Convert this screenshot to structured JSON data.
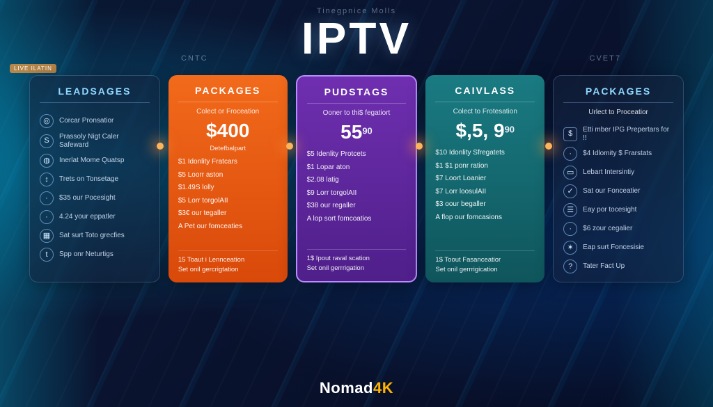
{
  "header": {
    "caption": "Tinegpnice Molls",
    "title": "IPTV",
    "label_left": "CNTC",
    "label_right": "CVET7"
  },
  "live_tag": "LIVE ILATIN",
  "brand": {
    "name": "Nomad",
    "accent": "4K"
  },
  "colors": {
    "orange": "#f26a1b",
    "purple": "#6f2fb0",
    "teal": "#1a7b82",
    "glass_border": "#8cbfff"
  },
  "dots": [
    230,
    416,
    602,
    788
  ],
  "cards": [
    {
      "title": "LEADSAGES",
      "style": "glass",
      "features": [
        {
          "icon": "◎",
          "label": "Corcar Pronsatior"
        },
        {
          "icon": "S",
          "label": "Prassoly Nigt Caler\nSafeward"
        },
        {
          "icon": "◍",
          "label": "Inerlat Mome Quatsp"
        },
        {
          "icon": "↕",
          "label": "Trets on Tonsetage"
        },
        {
          "icon": "·",
          "label": "$35 our Pocesight"
        },
        {
          "icon": "·",
          "label": "4.24 your eppatler"
        },
        {
          "icon": "▦",
          "label": "Sat surt Toto grecfies"
        },
        {
          "icon": "t",
          "label": "Spp onr Neturtigs"
        }
      ]
    },
    {
      "title": "PACKAGES",
      "style": "orange",
      "subtitle": "Colect or Froceation",
      "price": "$400",
      "price_under": "Detefbalpart",
      "lines": [
        "$1 Idonlity Fratcars",
        "$5 Loorr aston",
        "$1.49S lolly",
        "$5 Lorr torgolAII",
        "$3€ our tegaller",
        "A Pet our fomceaties"
      ],
      "footer": [
        "15 Toaut i Lennceation",
        "Set onil gercrigtation"
      ]
    },
    {
      "title": "PUDSTAGS",
      "style": "purple",
      "subtitle": "Ooner to thi$ fegatiort",
      "price": "55",
      "price_sup": "90",
      "lines": [
        "$5 Idenlity Protcets",
        "$1 Lopar aton",
        "$2.08 latig",
        "$9 Lorr torgolAII",
        "$38 our regaller",
        "A lop sort fomcoatios"
      ],
      "footer": [
        "1$ Ipout raval scation",
        "Set onil gerrrigation"
      ]
    },
    {
      "title": "CAIVLASS",
      "style": "teal",
      "subtitle": "Colect to Frotesation",
      "price": "$,5, 9",
      "price_sup": "90",
      "lines": [
        "$10 Idonlity Sfregatets",
        "$1 $1 ponr ration",
        "$7 Loort Loanier",
        "$7 Lorr loosulAII",
        "$3 oour begaller",
        "A flop our fomcasions"
      ],
      "footer": [
        "1$ Toout Fasanceatior",
        "Set onil gerrrigication"
      ]
    },
    {
      "title": "PACKAGES",
      "style": "glass",
      "subtitle": "Urlect to Proceatior",
      "features": [
        {
          "icon": "$",
          "label": "Etti mber IPG Prepertars for !!",
          "shape": "square"
        },
        {
          "icon": "·",
          "label": "$4 Idlomity $ Frarstats"
        },
        {
          "icon": "▭",
          "label": "Lebart Intersintiy"
        },
        {
          "icon": "✓",
          "label": "Sat our Fonceatier"
        },
        {
          "icon": "☰",
          "label": "Eay por tocesight"
        },
        {
          "icon": "·",
          "label": "$6 zour cegalier"
        },
        {
          "icon": "✶",
          "label": "Eap surt Foncesisie"
        },
        {
          "icon": "?",
          "label": "Tater Fact Up"
        }
      ]
    }
  ]
}
